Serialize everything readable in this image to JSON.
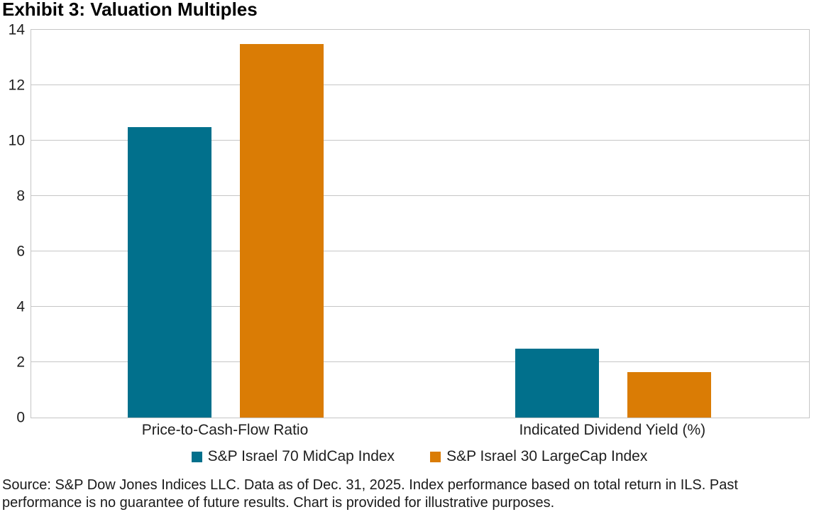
{
  "title": "Exhibit 3: Valuation Multiples",
  "chart_data": {
    "type": "bar",
    "title": "Exhibit 3: Valuation Multiples",
    "categories": [
      "Price-to-Cash-Flow Ratio",
      "Indicated Dividend Yield (%)"
    ],
    "series": [
      {
        "name": "S&P Israel 70 MidCap Index",
        "color": "#01708C",
        "values": [
          10.5,
          2.5
        ]
      },
      {
        "name": "S&P Israel 30 LargeCap Index",
        "color": "#DA7C05",
        "values": [
          13.5,
          1.65
        ]
      }
    ],
    "xlabel": "",
    "ylabel": "",
    "ylim": [
      0,
      14
    ],
    "yticks": [
      0,
      2,
      4,
      6,
      8,
      10,
      12,
      14
    ],
    "grid": "horizontal",
    "gridline_color": "#c6c6c6",
    "legend_position": "bottom"
  },
  "source_note": "Source: S&P Dow Jones Indices LLC. Data as of Dec. 31, 2025. Index performance based on total return in ILS. Past performance is no guarantee of future results. Chart is provided for illustrative purposes."
}
